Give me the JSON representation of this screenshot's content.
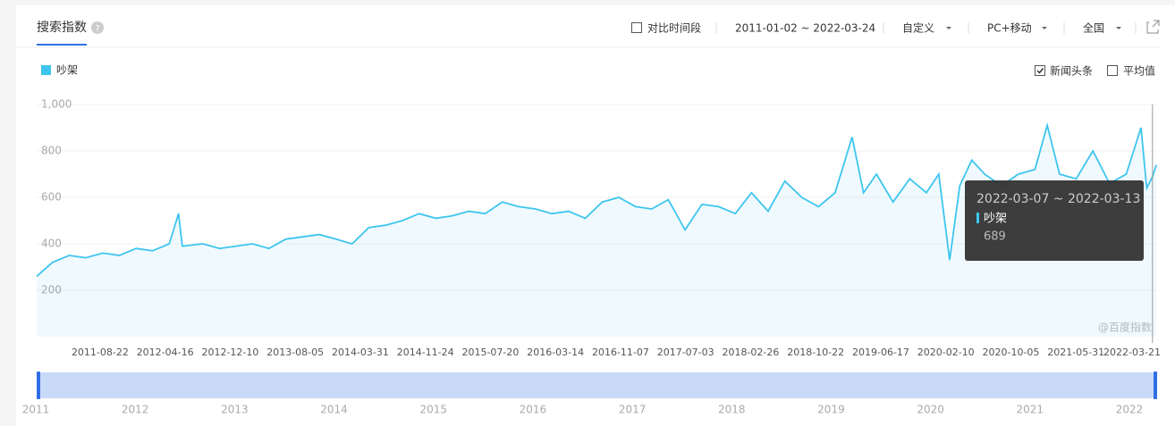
{
  "header": {
    "tab": "搜索指数",
    "help": "?",
    "compare": "对比时间段",
    "date_range": "2011-01-02 ~ 2022-03-24",
    "custom": "自定义",
    "device": "PC+移动",
    "region": "全国"
  },
  "options": {
    "news": "新闻头条",
    "news_checked": true,
    "average": "平均值",
    "average_checked": false
  },
  "watermark": "@百度指数",
  "chart_data": {
    "type": "area-line",
    "x": [
      "2011-01-02",
      "2011-03-01",
      "2011-05-01",
      "2011-07-01",
      "2011-09-01",
      "2011-11-01",
      "2012-01-01",
      "2012-03-01",
      "2012-05-01",
      "2012-06-04",
      "2012-06-18",
      "2012-09-01",
      "2012-11-01",
      "2013-01-01",
      "2013-03-01",
      "2013-05-01",
      "2013-07-01",
      "2013-09-01",
      "2013-11-01",
      "2014-01-01",
      "2014-03-01",
      "2014-05-01",
      "2014-07-01",
      "2014-09-01",
      "2014-11-01",
      "2015-01-01",
      "2015-03-01",
      "2015-05-01",
      "2015-07-01",
      "2015-09-01",
      "2015-11-01",
      "2016-01-01",
      "2016-03-01",
      "2016-05-01",
      "2016-07-01",
      "2016-09-01",
      "2016-11-01",
      "2017-01-01",
      "2017-03-01",
      "2017-05-01",
      "2017-07-01",
      "2017-09-01",
      "2017-11-01",
      "2018-01-01",
      "2018-03-01",
      "2018-05-01",
      "2018-07-01",
      "2018-09-01",
      "2018-11-01",
      "2019-01-01",
      "2019-03-04",
      "2019-04-15",
      "2019-06-01",
      "2019-08-01",
      "2019-10-01",
      "2019-12-01",
      "2020-01-15",
      "2020-02-24",
      "2020-04-01",
      "2020-05-15",
      "2020-07-01",
      "2020-09-01",
      "2020-11-01",
      "2021-01-01",
      "2021-02-15",
      "2021-04-01",
      "2021-06-01",
      "2021-08-01",
      "2021-10-01",
      "2021-12-01",
      "2022-01-24",
      "2022-02-14",
      "2022-03-07",
      "2022-03-21"
    ],
    "series": [
      {
        "name": "吵架",
        "color": "#3ec5ee",
        "values": [
          260,
          320,
          350,
          340,
          360,
          350,
          380,
          370,
          400,
          530,
          390,
          400,
          380,
          390,
          400,
          380,
          420,
          430,
          440,
          420,
          400,
          470,
          480,
          500,
          530,
          510,
          520,
          540,
          530,
          580,
          560,
          550,
          530,
          540,
          510,
          580,
          600,
          560,
          550,
          590,
          460,
          570,
          560,
          530,
          620,
          540,
          670,
          600,
          560,
          620,
          860,
          620,
          700,
          580,
          680,
          620,
          700,
          330,
          650,
          760,
          700,
          650,
          700,
          720,
          910,
          700,
          680,
          800,
          660,
          700,
          900,
          640,
          689,
          740
        ]
      }
    ],
    "xlim": [
      "2011-01-02",
      "2022-03-24"
    ],
    "xticks": [
      "2011-08-22",
      "2012-04-16",
      "2012-12-10",
      "2013-08-05",
      "2014-03-31",
      "2014-11-24",
      "2015-07-20",
      "2016-03-14",
      "2016-11-07",
      "2017-07-03",
      "2018-02-26",
      "2018-10-22",
      "2019-06-17",
      "2020-02-10",
      "2020-10-05",
      "2021-05-31",
      "2022-03-21"
    ],
    "ylim": [
      0,
      1000
    ],
    "yticks": [
      200,
      400,
      600,
      800,
      {
        "value": 1000,
        "label": "1,000"
      }
    ],
    "grid": true,
    "tooltip": {
      "range": "2022-03-07 ~ 2022-03-13"
    },
    "overview_years": [
      2011,
      2012,
      2013,
      2014,
      2015,
      2016,
      2017,
      2018,
      2019,
      2020,
      2021,
      2022
    ]
  }
}
